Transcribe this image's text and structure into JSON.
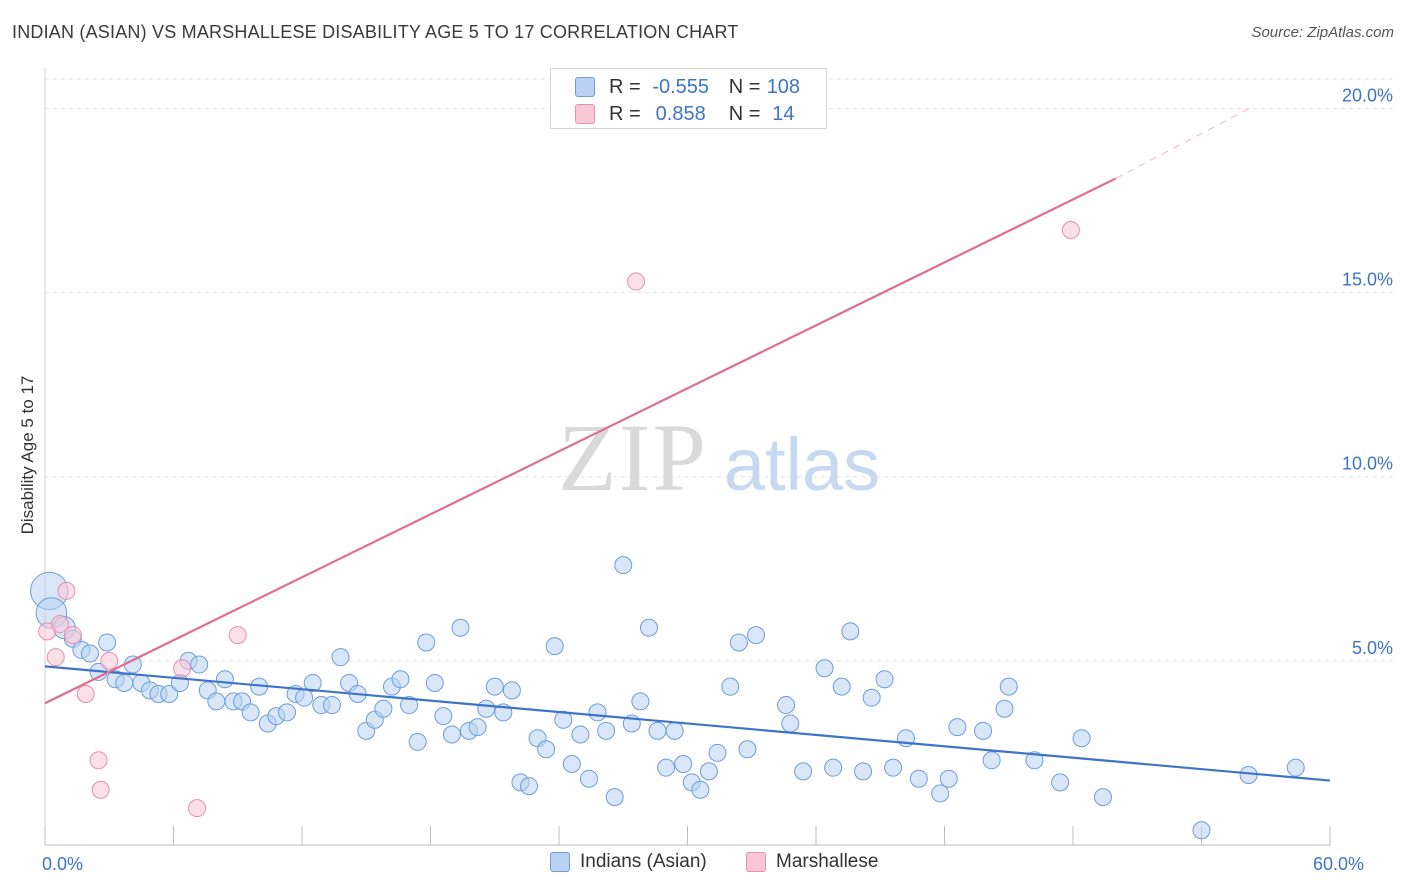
{
  "header": {
    "title": "INDIAN (ASIAN) VS MARSHALLESE DISABILITY AGE 5 TO 17 CORRELATION CHART",
    "source": "Source: ZipAtlas.com"
  },
  "watermark": {
    "zip": "ZIP",
    "atlas": "atlas"
  },
  "legend": {
    "rows": [
      {
        "r_label": "R =",
        "r_value": "-0.555",
        "n_label": "N =",
        "n_value": "108",
        "fill": "#b9d2f3",
        "stroke": "#6b9edb"
      },
      {
        "r_label": "R =",
        "r_value": "0.858",
        "n_label": "N =",
        "n_value": "14",
        "fill": "#f9c7d6",
        "stroke": "#e88fab"
      }
    ]
  },
  "bottom_legend": [
    {
      "label": "Indians (Asian)",
      "fill": "#b9d2f3",
      "stroke": "#6b9edb"
    },
    {
      "label": "Marshallese",
      "fill": "#f9c7d6",
      "stroke": "#e88fab"
    }
  ],
  "chart_data": {
    "type": "scatter",
    "title": "INDIAN (ASIAN) VS MARSHALLESE DISABILITY AGE 5 TO 17 CORRELATION CHART",
    "xlabel": "",
    "ylabel": "Disability Age 5 to 17",
    "xlim": [
      0,
      60
    ],
    "ylim": [
      0,
      20.8
    ],
    "x_tick_labels": [
      {
        "x": 0,
        "label": "0.0%"
      },
      {
        "x": 60,
        "label": "60.0%"
      }
    ],
    "y_ticks": [
      {
        "y": 5,
        "label": "5.0%"
      },
      {
        "y": 10,
        "label": "10.0%"
      },
      {
        "y": 15,
        "label": "15.0%"
      },
      {
        "y": 20,
        "label": "20.0%"
      }
    ],
    "grid": "horizontal dashed",
    "legend_position": "top-center",
    "series": [
      {
        "name": "Indians (Asian)",
        "color": "#3d74c7",
        "fill": "#b9d2f3",
        "stroke": "#6b9edb",
        "trend": {
          "x": [
            0,
            60
          ],
          "y": [
            4.85,
            1.75
          ]
        },
        "points": [
          {
            "x": 0.2,
            "y": 6.9,
            "s": 2.2
          },
          {
            "x": 0.3,
            "y": 6.3,
            "s": 1.8
          },
          {
            "x": 0.9,
            "y": 5.9,
            "s": 1.3
          },
          {
            "x": 1.3,
            "y": 5.6
          },
          {
            "x": 1.7,
            "y": 5.3
          },
          {
            "x": 2.1,
            "y": 5.2
          },
          {
            "x": 2.5,
            "y": 4.7
          },
          {
            "x": 2.9,
            "y": 5.5
          },
          {
            "x": 3.3,
            "y": 4.5
          },
          {
            "x": 3.7,
            "y": 4.4
          },
          {
            "x": 4.1,
            "y": 4.9
          },
          {
            "x": 4.5,
            "y": 4.4
          },
          {
            "x": 4.9,
            "y": 4.2
          },
          {
            "x": 5.3,
            "y": 4.1
          },
          {
            "x": 5.8,
            "y": 4.1
          },
          {
            "x": 6.3,
            "y": 4.4
          },
          {
            "x": 6.7,
            "y": 5.0
          },
          {
            "x": 7.2,
            "y": 4.9
          },
          {
            "x": 7.6,
            "y": 4.2
          },
          {
            "x": 8.0,
            "y": 3.9
          },
          {
            "x": 8.4,
            "y": 4.5
          },
          {
            "x": 8.8,
            "y": 3.9
          },
          {
            "x": 9.2,
            "y": 3.9
          },
          {
            "x": 9.6,
            "y": 3.6
          },
          {
            "x": 10.0,
            "y": 4.3
          },
          {
            "x": 10.4,
            "y": 3.3
          },
          {
            "x": 10.8,
            "y": 3.5
          },
          {
            "x": 11.3,
            "y": 3.6
          },
          {
            "x": 11.7,
            "y": 4.1
          },
          {
            "x": 12.1,
            "y": 4.0
          },
          {
            "x": 12.5,
            "y": 4.4
          },
          {
            "x": 12.9,
            "y": 3.8
          },
          {
            "x": 13.4,
            "y": 3.8
          },
          {
            "x": 13.8,
            "y": 5.1
          },
          {
            "x": 14.2,
            "y": 4.4
          },
          {
            "x": 14.6,
            "y": 4.1
          },
          {
            "x": 15.0,
            "y": 3.1
          },
          {
            "x": 15.4,
            "y": 3.4
          },
          {
            "x": 15.8,
            "y": 3.7
          },
          {
            "x": 16.2,
            "y": 4.3
          },
          {
            "x": 16.6,
            "y": 4.5
          },
          {
            "x": 17.0,
            "y": 3.8
          },
          {
            "x": 17.4,
            "y": 2.8
          },
          {
            "x": 17.8,
            "y": 5.5
          },
          {
            "x": 18.2,
            "y": 4.4
          },
          {
            "x": 18.6,
            "y": 3.5
          },
          {
            "x": 19.0,
            "y": 3.0
          },
          {
            "x": 19.4,
            "y": 5.9
          },
          {
            "x": 19.8,
            "y": 3.1
          },
          {
            "x": 20.2,
            "y": 3.2
          },
          {
            "x": 20.6,
            "y": 3.7
          },
          {
            "x": 21.0,
            "y": 4.3
          },
          {
            "x": 21.4,
            "y": 3.6
          },
          {
            "x": 21.8,
            "y": 4.2
          },
          {
            "x": 22.2,
            "y": 1.7
          },
          {
            "x": 22.6,
            "y": 1.6
          },
          {
            "x": 23.0,
            "y": 2.9
          },
          {
            "x": 23.4,
            "y": 2.6
          },
          {
            "x": 23.8,
            "y": 5.4
          },
          {
            "x": 24.2,
            "y": 3.4
          },
          {
            "x": 24.6,
            "y": 2.2
          },
          {
            "x": 25.0,
            "y": 3.0
          },
          {
            "x": 25.4,
            "y": 1.8
          },
          {
            "x": 25.8,
            "y": 3.6
          },
          {
            "x": 26.2,
            "y": 3.1
          },
          {
            "x": 26.6,
            "y": 1.3
          },
          {
            "x": 27.0,
            "y": 7.6
          },
          {
            "x": 27.4,
            "y": 3.3
          },
          {
            "x": 27.8,
            "y": 3.9
          },
          {
            "x": 28.2,
            "y": 5.9
          },
          {
            "x": 28.6,
            "y": 3.1
          },
          {
            "x": 29.0,
            "y": 2.1
          },
          {
            "x": 29.4,
            "y": 3.1
          },
          {
            "x": 29.8,
            "y": 2.2
          },
          {
            "x": 30.2,
            "y": 1.7
          },
          {
            "x": 30.6,
            "y": 1.5
          },
          {
            "x": 31.0,
            "y": 2.0
          },
          {
            "x": 31.4,
            "y": 2.5
          },
          {
            "x": 32.0,
            "y": 4.3
          },
          {
            "x": 32.4,
            "y": 5.5
          },
          {
            "x": 32.8,
            "y": 2.6
          },
          {
            "x": 33.2,
            "y": 5.7
          },
          {
            "x": 34.6,
            "y": 3.8
          },
          {
            "x": 34.8,
            "y": 3.3
          },
          {
            "x": 35.4,
            "y": 2.0
          },
          {
            "x": 36.4,
            "y": 4.8
          },
          {
            "x": 36.8,
            "y": 2.1
          },
          {
            "x": 37.2,
            "y": 4.3
          },
          {
            "x": 37.6,
            "y": 5.8
          },
          {
            "x": 38.2,
            "y": 2.0
          },
          {
            "x": 38.6,
            "y": 4.0
          },
          {
            "x": 39.2,
            "y": 4.5
          },
          {
            "x": 39.6,
            "y": 2.1
          },
          {
            "x": 40.2,
            "y": 2.9
          },
          {
            "x": 40.8,
            "y": 1.8
          },
          {
            "x": 41.8,
            "y": 1.4
          },
          {
            "x": 42.2,
            "y": 1.8
          },
          {
            "x": 42.6,
            "y": 3.2
          },
          {
            "x": 43.8,
            "y": 3.1
          },
          {
            "x": 44.2,
            "y": 2.3
          },
          {
            "x": 44.8,
            "y": 3.7
          },
          {
            "x": 45.0,
            "y": 4.3
          },
          {
            "x": 46.2,
            "y": 2.3
          },
          {
            "x": 47.4,
            "y": 1.7
          },
          {
            "x": 48.4,
            "y": 2.9
          },
          {
            "x": 49.4,
            "y": 1.3
          },
          {
            "x": 54.0,
            "y": 0.4
          },
          {
            "x": 56.2,
            "y": 1.9
          },
          {
            "x": 58.4,
            "y": 2.1
          }
        ]
      },
      {
        "name": "Marshallese",
        "color": "#e06b93",
        "fill": "#f9c7d6",
        "stroke": "#e88fab",
        "trend": {
          "x": [
            0,
            50
          ],
          "y": [
            3.85,
            18.1
          ]
        },
        "trend_dashed": {
          "x": [
            50,
            56.4
          ],
          "y": [
            18.1,
            20.05
          ]
        },
        "points": [
          {
            "x": 0.1,
            "y": 5.8
          },
          {
            "x": 0.5,
            "y": 5.1
          },
          {
            "x": 1.0,
            "y": 6.9
          },
          {
            "x": 1.3,
            "y": 5.7
          },
          {
            "x": 1.9,
            "y": 4.1
          },
          {
            "x": 2.5,
            "y": 2.3
          },
          {
            "x": 2.6,
            "y": 1.5
          },
          {
            "x": 3.0,
            "y": 5.0
          },
          {
            "x": 6.4,
            "y": 4.8
          },
          {
            "x": 7.1,
            "y": 1.0
          },
          {
            "x": 9.0,
            "y": 5.7
          },
          {
            "x": 27.6,
            "y": 15.3
          },
          {
            "x": 47.9,
            "y": 16.7
          },
          {
            "x": 0.7,
            "y": 6.0
          }
        ]
      }
    ]
  }
}
